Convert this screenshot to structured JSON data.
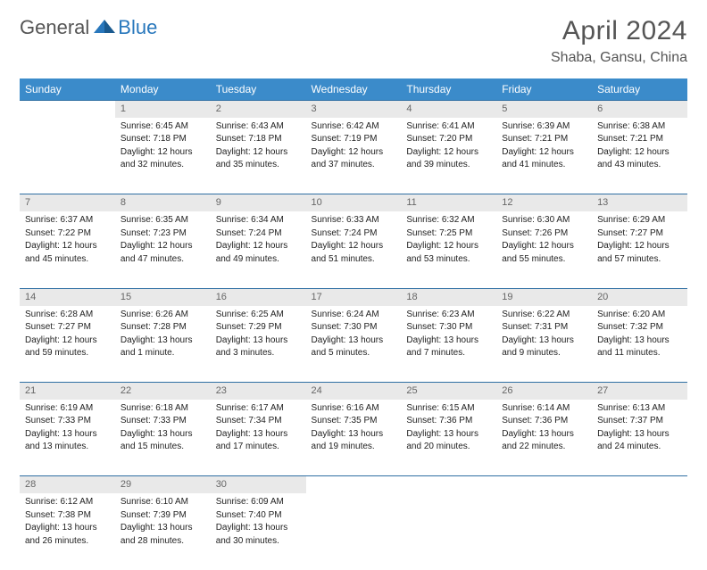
{
  "logo": {
    "part1": "General",
    "part2": "Blue"
  },
  "title": "April 2024",
  "location": "Shaba, Gansu, China",
  "colors": {
    "header_bg": "#3b8bca",
    "border": "#2f6fa3",
    "daynum_bg": "#e9e9e9",
    "logo_blue": "#2877bc",
    "text": "#333333"
  },
  "weekdays": [
    "Sunday",
    "Monday",
    "Tuesday",
    "Wednesday",
    "Thursday",
    "Friday",
    "Saturday"
  ],
  "weeks": [
    {
      "nums": [
        "",
        "1",
        "2",
        "3",
        "4",
        "5",
        "6"
      ],
      "cells": [
        null,
        {
          "sr": "Sunrise: 6:45 AM",
          "ss": "Sunset: 7:18 PM",
          "d1": "Daylight: 12 hours",
          "d2": "and 32 minutes."
        },
        {
          "sr": "Sunrise: 6:43 AM",
          "ss": "Sunset: 7:18 PM",
          "d1": "Daylight: 12 hours",
          "d2": "and 35 minutes."
        },
        {
          "sr": "Sunrise: 6:42 AM",
          "ss": "Sunset: 7:19 PM",
          "d1": "Daylight: 12 hours",
          "d2": "and 37 minutes."
        },
        {
          "sr": "Sunrise: 6:41 AM",
          "ss": "Sunset: 7:20 PM",
          "d1": "Daylight: 12 hours",
          "d2": "and 39 minutes."
        },
        {
          "sr": "Sunrise: 6:39 AM",
          "ss": "Sunset: 7:21 PM",
          "d1": "Daylight: 12 hours",
          "d2": "and 41 minutes."
        },
        {
          "sr": "Sunrise: 6:38 AM",
          "ss": "Sunset: 7:21 PM",
          "d1": "Daylight: 12 hours",
          "d2": "and 43 minutes."
        }
      ]
    },
    {
      "nums": [
        "7",
        "8",
        "9",
        "10",
        "11",
        "12",
        "13"
      ],
      "cells": [
        {
          "sr": "Sunrise: 6:37 AM",
          "ss": "Sunset: 7:22 PM",
          "d1": "Daylight: 12 hours",
          "d2": "and 45 minutes."
        },
        {
          "sr": "Sunrise: 6:35 AM",
          "ss": "Sunset: 7:23 PM",
          "d1": "Daylight: 12 hours",
          "d2": "and 47 minutes."
        },
        {
          "sr": "Sunrise: 6:34 AM",
          "ss": "Sunset: 7:24 PM",
          "d1": "Daylight: 12 hours",
          "d2": "and 49 minutes."
        },
        {
          "sr": "Sunrise: 6:33 AM",
          "ss": "Sunset: 7:24 PM",
          "d1": "Daylight: 12 hours",
          "d2": "and 51 minutes."
        },
        {
          "sr": "Sunrise: 6:32 AM",
          "ss": "Sunset: 7:25 PM",
          "d1": "Daylight: 12 hours",
          "d2": "and 53 minutes."
        },
        {
          "sr": "Sunrise: 6:30 AM",
          "ss": "Sunset: 7:26 PM",
          "d1": "Daylight: 12 hours",
          "d2": "and 55 minutes."
        },
        {
          "sr": "Sunrise: 6:29 AM",
          "ss": "Sunset: 7:27 PM",
          "d1": "Daylight: 12 hours",
          "d2": "and 57 minutes."
        }
      ]
    },
    {
      "nums": [
        "14",
        "15",
        "16",
        "17",
        "18",
        "19",
        "20"
      ],
      "cells": [
        {
          "sr": "Sunrise: 6:28 AM",
          "ss": "Sunset: 7:27 PM",
          "d1": "Daylight: 12 hours",
          "d2": "and 59 minutes."
        },
        {
          "sr": "Sunrise: 6:26 AM",
          "ss": "Sunset: 7:28 PM",
          "d1": "Daylight: 13 hours",
          "d2": "and 1 minute."
        },
        {
          "sr": "Sunrise: 6:25 AM",
          "ss": "Sunset: 7:29 PM",
          "d1": "Daylight: 13 hours",
          "d2": "and 3 minutes."
        },
        {
          "sr": "Sunrise: 6:24 AM",
          "ss": "Sunset: 7:30 PM",
          "d1": "Daylight: 13 hours",
          "d2": "and 5 minutes."
        },
        {
          "sr": "Sunrise: 6:23 AM",
          "ss": "Sunset: 7:30 PM",
          "d1": "Daylight: 13 hours",
          "d2": "and 7 minutes."
        },
        {
          "sr": "Sunrise: 6:22 AM",
          "ss": "Sunset: 7:31 PM",
          "d1": "Daylight: 13 hours",
          "d2": "and 9 minutes."
        },
        {
          "sr": "Sunrise: 6:20 AM",
          "ss": "Sunset: 7:32 PM",
          "d1": "Daylight: 13 hours",
          "d2": "and 11 minutes."
        }
      ]
    },
    {
      "nums": [
        "21",
        "22",
        "23",
        "24",
        "25",
        "26",
        "27"
      ],
      "cells": [
        {
          "sr": "Sunrise: 6:19 AM",
          "ss": "Sunset: 7:33 PM",
          "d1": "Daylight: 13 hours",
          "d2": "and 13 minutes."
        },
        {
          "sr": "Sunrise: 6:18 AM",
          "ss": "Sunset: 7:33 PM",
          "d1": "Daylight: 13 hours",
          "d2": "and 15 minutes."
        },
        {
          "sr": "Sunrise: 6:17 AM",
          "ss": "Sunset: 7:34 PM",
          "d1": "Daylight: 13 hours",
          "d2": "and 17 minutes."
        },
        {
          "sr": "Sunrise: 6:16 AM",
          "ss": "Sunset: 7:35 PM",
          "d1": "Daylight: 13 hours",
          "d2": "and 19 minutes."
        },
        {
          "sr": "Sunrise: 6:15 AM",
          "ss": "Sunset: 7:36 PM",
          "d1": "Daylight: 13 hours",
          "d2": "and 20 minutes."
        },
        {
          "sr": "Sunrise: 6:14 AM",
          "ss": "Sunset: 7:36 PM",
          "d1": "Daylight: 13 hours",
          "d2": "and 22 minutes."
        },
        {
          "sr": "Sunrise: 6:13 AM",
          "ss": "Sunset: 7:37 PM",
          "d1": "Daylight: 13 hours",
          "d2": "and 24 minutes."
        }
      ]
    },
    {
      "nums": [
        "28",
        "29",
        "30",
        "",
        "",
        "",
        ""
      ],
      "cells": [
        {
          "sr": "Sunrise: 6:12 AM",
          "ss": "Sunset: 7:38 PM",
          "d1": "Daylight: 13 hours",
          "d2": "and 26 minutes."
        },
        {
          "sr": "Sunrise: 6:10 AM",
          "ss": "Sunset: 7:39 PM",
          "d1": "Daylight: 13 hours",
          "d2": "and 28 minutes."
        },
        {
          "sr": "Sunrise: 6:09 AM",
          "ss": "Sunset: 7:40 PM",
          "d1": "Daylight: 13 hours",
          "d2": "and 30 minutes."
        },
        null,
        null,
        null,
        null
      ]
    }
  ]
}
